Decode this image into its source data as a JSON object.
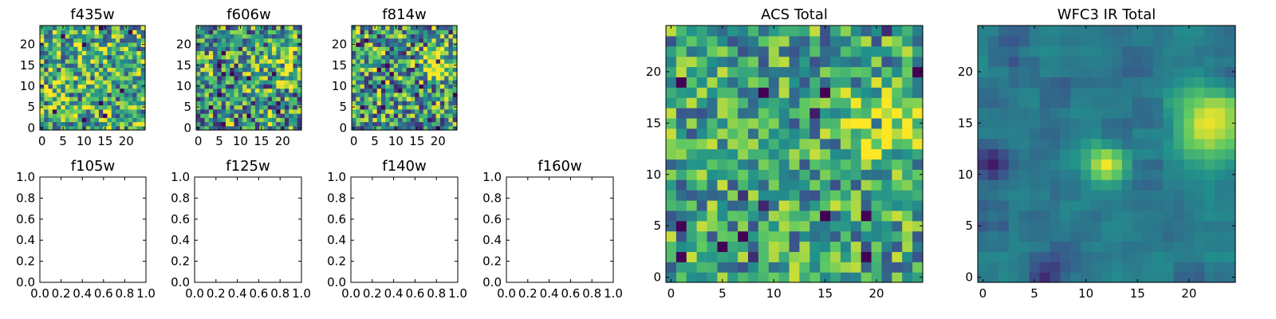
{
  "chart_data": {
    "type": "heatmap",
    "colormap": [
      "#440154",
      "#3b528b",
      "#21918c",
      "#5ec962",
      "#fde725"
    ],
    "panels": [
      {
        "id": "f435w",
        "title": "f435w",
        "kind": "heatmap",
        "grid": [
          25,
          25
        ],
        "xticks": [
          0,
          5,
          10,
          15,
          20
        ],
        "yticks": [
          0,
          5,
          10,
          15,
          20
        ],
        "seed": 11,
        "noise": 0.42,
        "base": 0.62,
        "min": 0.2,
        "sources": []
      },
      {
        "id": "f606w",
        "title": "f606w",
        "kind": "heatmap",
        "grid": [
          25,
          25
        ],
        "xticks": [
          0,
          5,
          10,
          15,
          20
        ],
        "yticks": [
          0,
          5,
          10,
          15,
          20
        ],
        "seed": 23,
        "noise": 0.45,
        "base": 0.55,
        "min": 0.0,
        "sources": [
          {
            "x": 20,
            "y": 15,
            "amp": 0.45,
            "sigma": 2.2
          }
        ]
      },
      {
        "id": "f814w",
        "title": "f814w",
        "kind": "heatmap",
        "grid": [
          25,
          25
        ],
        "xticks": [
          0,
          5,
          10,
          15,
          20
        ],
        "yticks": [
          0,
          5,
          10,
          15,
          20
        ],
        "seed": 37,
        "noise": 0.45,
        "base": 0.55,
        "min": 0.0,
        "sources": [
          {
            "x": 20,
            "y": 15,
            "amp": 0.5,
            "sigma": 2.2
          }
        ]
      },
      {
        "id": "f105w",
        "title": "f105w",
        "kind": "empty",
        "xlim": [
          0,
          1
        ],
        "ylim": [
          0,
          1
        ],
        "xticks": [
          "0.0",
          "0.2",
          "0.4",
          "0.6",
          "0.8",
          "1.0"
        ],
        "yticks": [
          "0.0",
          "0.2",
          "0.4",
          "0.6",
          "0.8",
          "1.0"
        ]
      },
      {
        "id": "f125w",
        "title": "f125w",
        "kind": "empty",
        "xlim": [
          0,
          1
        ],
        "ylim": [
          0,
          1
        ],
        "xticks": [
          "0.0",
          "0.2",
          "0.4",
          "0.6",
          "0.8",
          "1.0"
        ],
        "yticks": [
          "0.0",
          "0.2",
          "0.4",
          "0.6",
          "0.8",
          "1.0"
        ]
      },
      {
        "id": "f140w",
        "title": "f140w",
        "kind": "empty",
        "xlim": [
          0,
          1
        ],
        "ylim": [
          0,
          1
        ],
        "xticks": [
          "0.0",
          "0.2",
          "0.4",
          "0.6",
          "0.8",
          "1.0"
        ],
        "yticks": [
          "0.0",
          "0.2",
          "0.4",
          "0.6",
          "0.8",
          "1.0"
        ]
      },
      {
        "id": "f160w",
        "title": "f160w",
        "kind": "empty",
        "xlim": [
          0,
          1
        ],
        "ylim": [
          0,
          1
        ],
        "xticks": [
          "0.0",
          "0.2",
          "0.4",
          "0.6",
          "0.8",
          "1.0"
        ],
        "yticks": [
          "0.0",
          "0.2",
          "0.4",
          "0.6",
          "0.8",
          "1.0"
        ]
      },
      {
        "id": "acs-total",
        "title": "ACS Total",
        "kind": "heatmap",
        "grid": [
          25,
          25
        ],
        "xticks": [
          0,
          5,
          10,
          15,
          20
        ],
        "yticks": [
          0,
          5,
          10,
          15,
          20
        ],
        "seed": 51,
        "noise": 0.34,
        "base": 0.58,
        "min": 0.0,
        "sources": [
          {
            "x": 21,
            "y": 15,
            "amp": 0.42,
            "sigma": 2.4
          }
        ]
      },
      {
        "id": "wfc3-ir-total",
        "title": "WFC3 IR Total",
        "kind": "heatmap",
        "grid": [
          25,
          25
        ],
        "xticks": [
          0,
          5,
          10,
          15,
          20
        ],
        "yticks": [
          0,
          5,
          10,
          15,
          20
        ],
        "seed": 73,
        "noise": 0.16,
        "base": 0.42,
        "min": 0.0,
        "smooth": true,
        "sources": [
          {
            "x": 22,
            "y": 15,
            "amp": 0.55,
            "sigma": 2.6
          },
          {
            "x": 12,
            "y": 11,
            "amp": 0.5,
            "sigma": 1.3
          }
        ],
        "dark": [
          {
            "x": 1,
            "y": 11,
            "amp": 0.35,
            "sigma": 1.2
          },
          {
            "x": 6,
            "y": 0,
            "amp": 0.3,
            "sigma": 1.2
          }
        ]
      }
    ]
  }
}
